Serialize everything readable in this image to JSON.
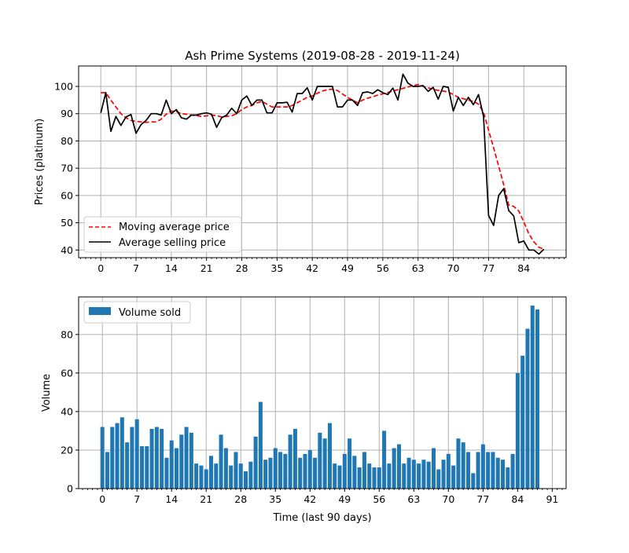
{
  "figure": {
    "title": "Ash Prime Systems (2019-08-28 - 2019-11-24)"
  },
  "chart_data": [
    {
      "type": "line",
      "title": "Ash Prime Systems (2019-08-28 - 2019-11-24)",
      "xlabel": "",
      "ylabel": "Prices (platinum)",
      "xlim": [
        -4.4,
        92.4
      ],
      "ylim": [
        37.2,
        107.5
      ],
      "xticks": [
        0,
        7,
        14,
        21,
        28,
        35,
        42,
        49,
        56,
        63,
        70,
        77,
        84
      ],
      "yticks": [
        40,
        50,
        60,
        70,
        80,
        90,
        100
      ],
      "grid": true,
      "legend_position": "lower left",
      "x": [
        0,
        1,
        2,
        3,
        4,
        5,
        6,
        7,
        8,
        9,
        10,
        11,
        12,
        13,
        14,
        15,
        16,
        17,
        18,
        19,
        20,
        21,
        22,
        23,
        24,
        25,
        26,
        27,
        28,
        29,
        30,
        31,
        32,
        33,
        34,
        35,
        36,
        37,
        38,
        39,
        40,
        41,
        42,
        43,
        44,
        45,
        46,
        47,
        48,
        49,
        50,
        51,
        52,
        53,
        54,
        55,
        56,
        57,
        58,
        59,
        60,
        61,
        62,
        63,
        64,
        65,
        66,
        67,
        68,
        69,
        70,
        71,
        72,
        73,
        74,
        75,
        76,
        77,
        78,
        79,
        80,
        81,
        82,
        83,
        84,
        85,
        86,
        87,
        88
      ],
      "series": [
        {
          "name": "Moving average price",
          "color": "#ff0000",
          "style": "dashed",
          "values": [
            97.7,
            97.7,
            95,
            92.5,
            90,
            88.5,
            87.5,
            87.2,
            87,
            86.8,
            87,
            87,
            88,
            89.8,
            91,
            90.8,
            90,
            89.8,
            89.5,
            89.3,
            89,
            89.2,
            89.5,
            89.3,
            88.8,
            89,
            89.2,
            90,
            91.5,
            92.5,
            93,
            94,
            94.5,
            93.5,
            92.5,
            92.5,
            92.5,
            92.5,
            93,
            94,
            95,
            96,
            96.5,
            97.5,
            98.3,
            98.8,
            99,
            98.5,
            97.2,
            96,
            95,
            94,
            95,
            95.7,
            96.2,
            96.8,
            97.3,
            97.8,
            98.3,
            98.8,
            99.3,
            99.8,
            100.3,
            100.7,
            100,
            99.5,
            99,
            98.5,
            98.3,
            98,
            97,
            96,
            95.5,
            95,
            94.5,
            93.5,
            90.5,
            84,
            77.5,
            70.8,
            64,
            56.5,
            56,
            54.3,
            50.3,
            46,
            43,
            41,
            40.3
          ]
        },
        {
          "name": "Average selling price",
          "color": "#000000",
          "style": "solid",
          "values": [
            90.3,
            97.7,
            83.5,
            89,
            85.7,
            88.8,
            89.7,
            82.8,
            86,
            87.5,
            90,
            90,
            89.5,
            95,
            90,
            91.5,
            88.5,
            88,
            89.5,
            89.5,
            90,
            90.3,
            89.8,
            85,
            88.5,
            89.5,
            92,
            90,
            95,
            96.5,
            93,
            95,
            95,
            90.3,
            90.3,
            94,
            94,
            94.2,
            90.6,
            97.4,
            97.4,
            99.5,
            95,
            100,
            100,
            100,
            100,
            92.5,
            92.5,
            95,
            95,
            93,
            97.7,
            98,
            97.4,
            98.8,
            97.7,
            97,
            99.4,
            95,
            104.5,
            101.2,
            100,
            100,
            100.3,
            98.2,
            99.7,
            95.3,
            100,
            99.7,
            91,
            96,
            93,
            96,
            93.3,
            97,
            89,
            52.7,
            49,
            60,
            62.5,
            54.5,
            52.5,
            42.7,
            43.3,
            40,
            40,
            38.5,
            40.3
          ]
        }
      ]
    },
    {
      "type": "bar",
      "title": "",
      "xlabel": "Time (last 90 days)",
      "ylabel": "Volume",
      "xlim": [
        -4.8,
        93.8
      ],
      "ylim": [
        0,
        99.5
      ],
      "xticks": [
        0,
        7,
        14,
        21,
        28,
        35,
        42,
        49,
        56,
        63,
        70,
        77,
        84,
        91
      ],
      "yticks": [
        0,
        20,
        40,
        60,
        80
      ],
      "grid": true,
      "legend_position": "upper left",
      "categories": [
        0,
        1,
        2,
        3,
        4,
        5,
        6,
        7,
        8,
        9,
        10,
        11,
        12,
        13,
        14,
        15,
        16,
        17,
        18,
        19,
        20,
        21,
        22,
        23,
        24,
        25,
        26,
        27,
        28,
        29,
        30,
        31,
        32,
        33,
        34,
        35,
        36,
        37,
        38,
        39,
        40,
        41,
        42,
        43,
        44,
        45,
        46,
        47,
        48,
        49,
        50,
        51,
        52,
        53,
        54,
        55,
        56,
        57,
        58,
        59,
        60,
        61,
        62,
        63,
        64,
        65,
        66,
        67,
        68,
        69,
        70,
        71,
        72,
        73,
        74,
        75,
        76,
        77,
        78,
        79,
        80,
        81,
        82,
        83,
        84,
        85,
        86,
        87,
        88
      ],
      "series": [
        {
          "name": "Volume sold",
          "color": "#1f77b4",
          "values": [
            32,
            19,
            32,
            34,
            37,
            24,
            32,
            36,
            22,
            22,
            31,
            32,
            31,
            16,
            25,
            21,
            28,
            32,
            29,
            13,
            12,
            10,
            17,
            13,
            28,
            21,
            12,
            19,
            13,
            9,
            14,
            27,
            45,
            15,
            16,
            21,
            19,
            18,
            28,
            31,
            16,
            18,
            20,
            16,
            29,
            26,
            34,
            13,
            12,
            18,
            26,
            17,
            11,
            19,
            13,
            11,
            11,
            30,
            13,
            21,
            23,
            13,
            16,
            15,
            13,
            15,
            14,
            21,
            10,
            15,
            18,
            12,
            26,
            24,
            19,
            8,
            19,
            23,
            19,
            19,
            16,
            15,
            11,
            18,
            60,
            69,
            83,
            95,
            93
          ]
        }
      ]
    }
  ]
}
